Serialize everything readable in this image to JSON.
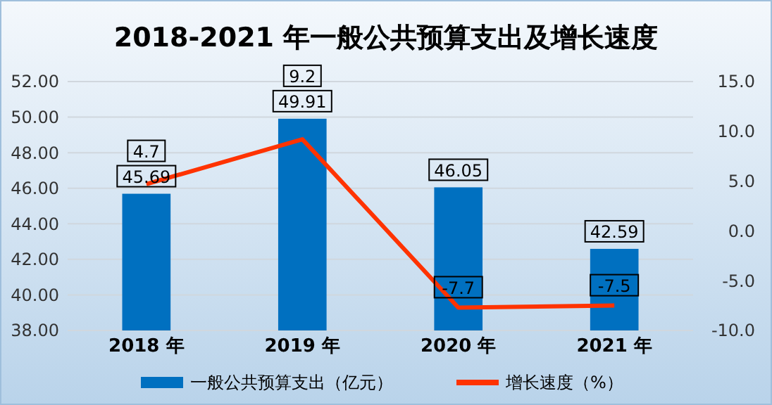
{
  "chart_data": {
    "type": "bar",
    "title": "2018-2021 年一般公共预算支出及增长速度",
    "categories": [
      "2018 年",
      "2019 年",
      "2020 年",
      "2021 年"
    ],
    "series": [
      {
        "name": "一般公共预算支出（亿元）",
        "color": "#0070c0",
        "values": [
          45.69,
          49.91,
          46.05,
          42.59
        ]
      },
      {
        "name": "增长速度（%）",
        "type": "line",
        "axis": "y2",
        "color": "#ff3300",
        "values": [
          4.7,
          9.2,
          -7.7,
          -7.5
        ]
      }
    ],
    "ylim": [
      38,
      52
    ],
    "yticks": [
      {
        "value": 38,
        "label": "38.00"
      },
      {
        "value": 40,
        "label": "40.00"
      },
      {
        "value": 42,
        "label": "42.00"
      },
      {
        "value": 44,
        "label": "44.00"
      },
      {
        "value": 46,
        "label": "46.00"
      },
      {
        "value": 48,
        "label": "48.00"
      },
      {
        "value": 50,
        "label": "50.00"
      },
      {
        "value": 52,
        "label": "52.00"
      }
    ],
    "y2lim": [
      -10,
      15
    ],
    "y2ticks": [
      {
        "value": -10,
        "label": "-10.0"
      },
      {
        "value": -5,
        "label": "-5.0"
      },
      {
        "value": 0,
        "label": "0.0"
      },
      {
        "value": 5,
        "label": "5.0"
      },
      {
        "value": 10,
        "label": "10.0"
      },
      {
        "value": 15,
        "label": "15.0"
      }
    ],
    "grid": "y",
    "legend": "bottom",
    "data_labels": true,
    "marker": "none",
    "line_style": "solid"
  }
}
